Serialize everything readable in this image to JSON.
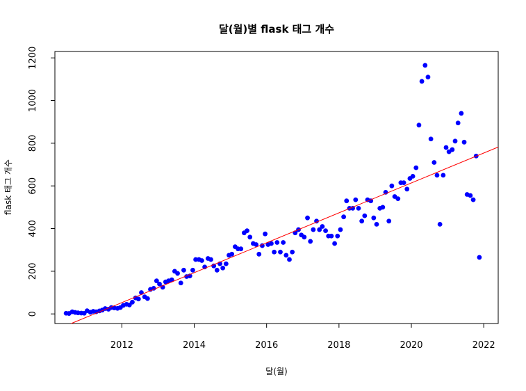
{
  "chart_data": {
    "type": "scatter",
    "title": "달(월)별 flask 태그 개수",
    "xlabel": "달(월)",
    "ylabel": "flask 태그 개수",
    "xlim": [
      2010.15,
      2022.4
    ],
    "ylim": [
      -45,
      1230
    ],
    "x_ticks": [
      2012,
      2014,
      2016,
      2018,
      2020,
      2022
    ],
    "y_ticks": [
      0,
      200,
      400,
      600,
      800,
      1000,
      1200
    ],
    "grid": false,
    "point_color": "#0000ff",
    "trend_color": "#ff0000",
    "trend_line": {
      "x": [
        2010.6,
        2022.4
      ],
      "y": [
        -45,
        782
      ]
    },
    "series": [
      {
        "x": [
          2010.46,
          2010.54,
          2010.63,
          2010.71,
          2010.79,
          2010.88,
          2010.96,
          2011.04,
          2011.13,
          2011.21,
          2011.29,
          2011.38,
          2011.46,
          2011.54,
          2011.63,
          2011.71,
          2011.79,
          2011.88,
          2011.96,
          2012.04,
          2012.13,
          2012.21,
          2012.29,
          2012.38,
          2012.46,
          2012.54,
          2012.63,
          2012.71,
          2012.79,
          2012.88,
          2012.96,
          2013.04,
          2013.13,
          2013.21,
          2013.29,
          2013.38,
          2013.46,
          2013.54,
          2013.63,
          2013.71,
          2013.79,
          2013.88,
          2013.96,
          2014.04,
          2014.13,
          2014.21,
          2014.29,
          2014.38,
          2014.46,
          2014.54,
          2014.63,
          2014.71,
          2014.79,
          2014.88,
          2014.96,
          2015.04,
          2015.13,
          2015.21,
          2015.29,
          2015.38,
          2015.46,
          2015.54,
          2015.63,
          2015.71,
          2015.79,
          2015.88,
          2015.96,
          2016.04,
          2016.13,
          2016.21,
          2016.29,
          2016.38,
          2016.46,
          2016.54,
          2016.63,
          2016.71,
          2016.79,
          2016.88,
          2016.96,
          2017.04,
          2017.13,
          2017.21,
          2017.29,
          2017.38,
          2017.46,
          2017.54,
          2017.63,
          2017.71,
          2017.79,
          2017.88,
          2017.96,
          2018.04,
          2018.13,
          2018.21,
          2018.29,
          2018.38,
          2018.46,
          2018.54,
          2018.63,
          2018.71,
          2018.79,
          2018.88,
          2018.96,
          2019.04,
          2019.13,
          2019.21,
          2019.29,
          2019.38,
          2019.46,
          2019.54,
          2019.63,
          2019.71,
          2019.79,
          2019.88,
          2019.96,
          2020.04,
          2020.13,
          2020.21,
          2020.29,
          2020.38,
          2020.46,
          2020.54,
          2020.63,
          2020.71,
          2020.79,
          2020.88,
          2020.96,
          2021.04,
          2021.13,
          2021.21,
          2021.29,
          2021.38,
          2021.46,
          2021.54,
          2021.63,
          2021.71,
          2021.79,
          2021.88
        ],
        "y": [
          3,
          2,
          10,
          7,
          5,
          4,
          3,
          15,
          8,
          12,
          10,
          14,
          18,
          25,
          22,
          30,
          28,
          26,
          30,
          40,
          45,
          42,
          55,
          75,
          70,
          100,
          80,
          72,
          115,
          120,
          155,
          140,
          125,
          150,
          155,
          160,
          200,
          190,
          145,
          205,
          175,
          178,
          205,
          255,
          255,
          250,
          220,
          260,
          255,
          225,
          205,
          235,
          215,
          235,
          275,
          280,
          315,
          305,
          305,
          380,
          390,
          360,
          330,
          325,
          280,
          320,
          375,
          325,
          330,
          290,
          335,
          290,
          335,
          275,
          255,
          290,
          380,
          395,
          370,
          360,
          450,
          340,
          395,
          435,
          395,
          410,
          390,
          365,
          365,
          330,
          365,
          395,
          455,
          530,
          495,
          495,
          535,
          495,
          435,
          460,
          535,
          530,
          450,
          420,
          495,
          500,
          570,
          435,
          600,
          550,
          540,
          615,
          615,
          585,
          635,
          645,
          685,
          885,
          1090,
          1165,
          1110,
          820,
          710,
          650,
          420,
          650,
          780,
          760,
          770,
          810,
          895,
          940,
          805,
          560,
          555,
          535,
          740,
          265
        ]
      }
    ]
  }
}
